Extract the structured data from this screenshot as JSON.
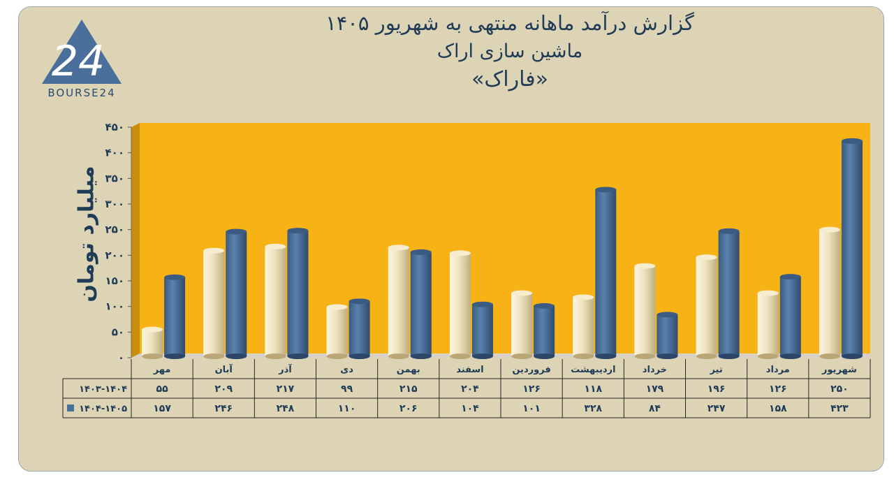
{
  "header": {
    "title_line1": "گزارش درآمد ماهانه منتهی به شهریور ۱۴۰۵",
    "title_line2": "ماشین سازی اراک",
    "title_line3": "«فاراک»"
  },
  "logo": {
    "text": "BOURSE24",
    "mark": "24"
  },
  "colors": {
    "series1": "#e8dcb4",
    "series2": "#4a6f9a",
    "plot_bg": "#f7b315",
    "panel_bg": "#ddd4b6",
    "text": "#1f3b55"
  },
  "chart_data": {
    "type": "bar",
    "title": "گزارش درآمد ماهانه منتهی به شهریور ۱۴۰۵",
    "ylabel": "میلیارد تومان",
    "ylim": [
      0,
      450
    ],
    "yticks": [
      0,
      50,
      100,
      150,
      200,
      250,
      300,
      350,
      400,
      450
    ],
    "ytick_labels": [
      "۰",
      "۵۰",
      "۱۰۰",
      "۱۵۰",
      "۲۰۰",
      "۲۵۰",
      "۳۰۰",
      "۳۵۰",
      "۴۰۰",
      "۴۵۰"
    ],
    "categories": [
      "مهر",
      "آبان",
      "آذر",
      "دی",
      "بهمن",
      "اسفند",
      "فروردین",
      "اردیبهشت",
      "خرداد",
      "تیر",
      "مرداد",
      "شهریور"
    ],
    "series": [
      {
        "name": "۱۴۰۳-۱۴۰۴",
        "values": [
          55,
          209,
          217,
          99,
          215,
          204,
          126,
          118,
          179,
          196,
          126,
          250
        ],
        "labels": [
          "۵۵",
          "۲۰۹",
          "۲۱۷",
          "۹۹",
          "۲۱۵",
          "۲۰۴",
          "۱۲۶",
          "۱۱۸",
          "۱۷۹",
          "۱۹۶",
          "۱۲۶",
          "۲۵۰"
        ]
      },
      {
        "name": "۱۴۰۴-۱۴۰۵",
        "values": [
          157,
          246,
          248,
          110,
          206,
          104,
          101,
          328,
          84,
          247,
          158,
          423
        ],
        "labels": [
          "۱۵۷",
          "۲۴۶",
          "۲۴۸",
          "۱۱۰",
          "۲۰۶",
          "۱۰۴",
          "۱۰۱",
          "۳۲۸",
          "۸۴",
          "۲۴۷",
          "۱۵۸",
          "۴۲۳"
        ]
      }
    ],
    "grid": false,
    "legend": "data-table"
  }
}
